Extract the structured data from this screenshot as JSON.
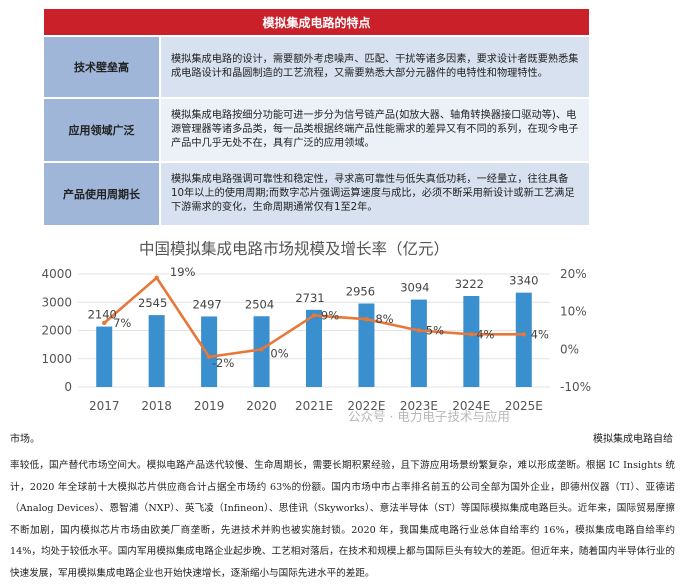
{
  "table": {
    "title": "模拟集成电路的特点",
    "rows": [
      {
        "label": "技术壁垒高",
        "text": "模拟集成电路的设计，需要额外考虑噪声、匹配、干扰等诸多因素，要求设计者既要熟悉集成电路设计和晶圆制造的工艺流程，又需要熟悉大部分元器件的电特性和物理特性。"
      },
      {
        "label": "应用领域广泛",
        "text": "模拟集成电路按细分功能可进一步分为信号链产品(如放大器、轴角转换器接口驱动等)、电源管理器等诸多品类，每一品类根据终端产品性能需求的差异又有不同的系列，在现今电子产品中几乎无处不在，具有广泛的应用领域。"
      },
      {
        "label": "产品使用周期长",
        "text": "模拟集成电路强调可靠性和稳定性，寻求高可靠性与低失真低功耗，一经量立，往往具备10年以上的使用周期;而数字芯片强调运算速度与成比，必须不断采用新设计或新工艺满足下游需求的变化，生命周期通常仅有1至2年。"
      }
    ]
  },
  "chart_data": {
    "type": "bar",
    "title": "中国模拟集成电路市场规模及增长率（亿元）",
    "categories": [
      "2017",
      "2018",
      "2019",
      "2020",
      "2021E",
      "2022E",
      "2023E",
      "2024E",
      "2025E"
    ],
    "series": [
      {
        "values": [
          2140,
          2545,
          2497,
          2504,
          2731,
          2956,
          3094,
          3222,
          3340
        ],
        "labels": [
          "2140",
          "2545",
          "2497",
          "2504",
          "2731",
          "2956",
          "3094",
          "3222",
          "3340"
        ],
        "color": "#3a8fcf",
        "axis": "left",
        "kind": "bar"
      },
      {
        "values": [
          7,
          19,
          -2,
          0,
          9,
          8,
          5,
          4,
          4
        ],
        "labels": [
          "7%",
          "19%",
          "-2%",
          "0%",
          "9%",
          "8%",
          "5%",
          "4%",
          "4%"
        ],
        "color": "#e8773a",
        "axis": "right",
        "kind": "line"
      }
    ],
    "y_left": {
      "min": 0,
      "max": 4000,
      "ticks": [
        "0",
        "1000",
        "2000",
        "3000",
        "4000"
      ]
    },
    "y_right": {
      "min": -10,
      "max": 20,
      "ticks": [
        "-10%",
        "0%",
        "10%",
        "20%"
      ]
    },
    "grid": true
  },
  "watermark": "公众号 · 电力电子技术与应用",
  "text": {
    "fragment_left": "市场。",
    "fragment_right": "模拟集成电路自给",
    "paragraph": "率较低，国产替代市场空间大。模拟电路产品迭代较慢、生命周期长，需要长期积累经验，且下游应用场景纷繁复杂，难以形成垄断。根据 IC Insights 统计，2020 年全球前十大模拟芯片供应商合计占据全市场约 63%的份额。国内市场中市占率排名前五的公司全部为国外企业，即德州仪器（TI）、亚德诺（Analog Devices）、恩智浦（NXP）、英飞凌（Infineon）、思佳讯（Skyworks）、意法半导体（ST）等国际模拟集成电路巨头。近年来，国际贸易摩擦不断加剧，国内模拟芯片市场由欧美厂商垄断，先进技术并购也被实施封锁。2020 年，我国集成电路行业总体自给率约 16%，模拟集成电路自给率约 14%，均处于较低水平。国内军用模拟集成电路企业起步晚、工艺相对落后，在技术和规模上都与国际巨头有较大的差距。但近年来，随着国内半导体行业的快速发展，军用模拟集成电路企业也开始快速增长，逐渐缩小与国际先进水平的差距。"
  }
}
